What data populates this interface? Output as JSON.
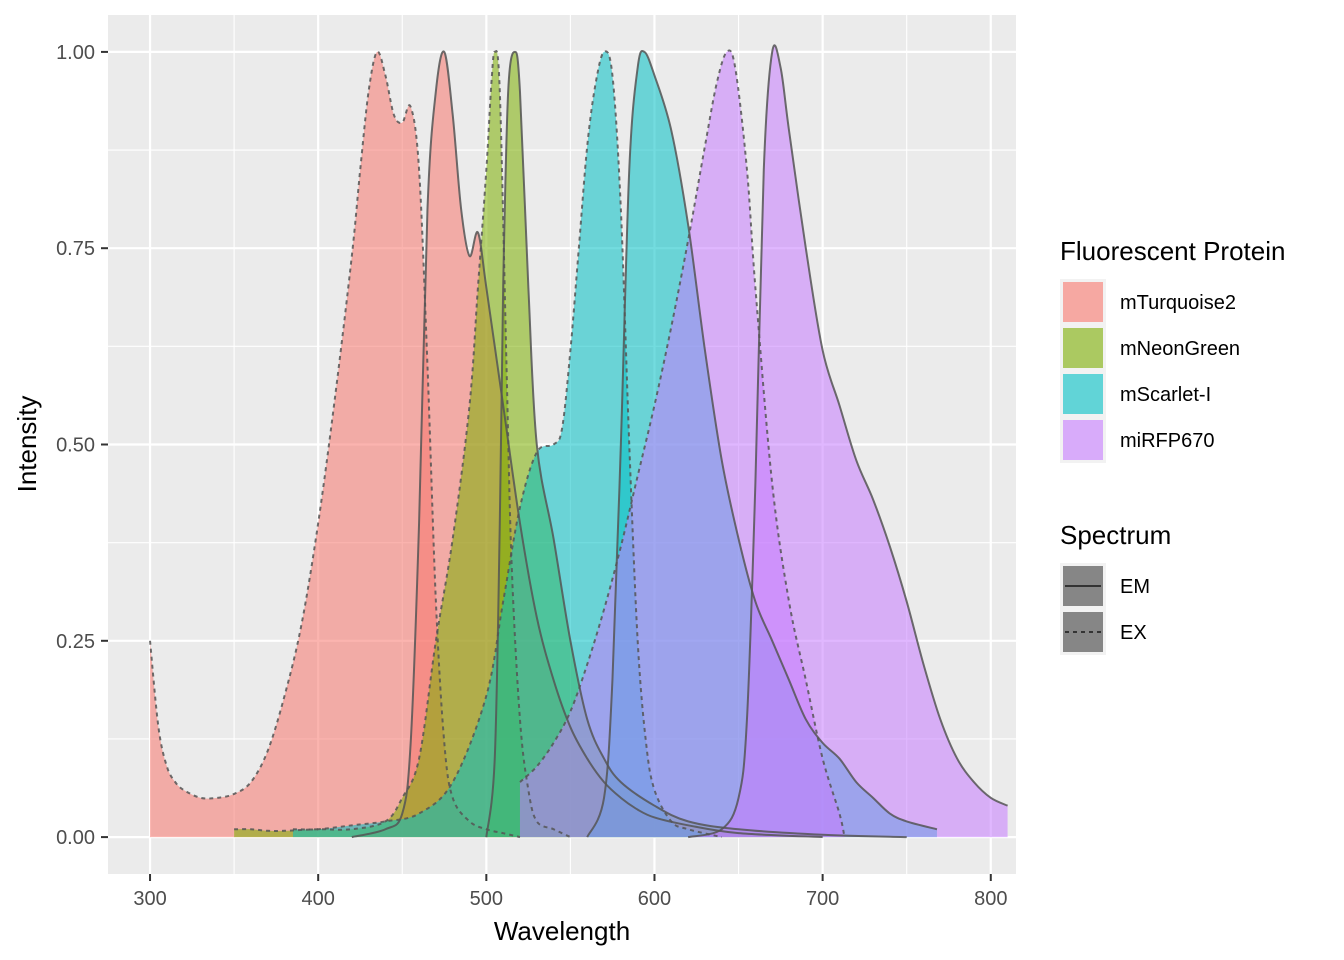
{
  "chart_data": {
    "type": "area",
    "xlabel": "Wavelength",
    "ylabel": "Intensity",
    "xlim": [
      275,
      815
    ],
    "ylim": [
      -0.047,
      1.047
    ],
    "x_ticks": [
      300,
      400,
      500,
      600,
      700,
      800
    ],
    "x_tick_labels": [
      "300",
      "400",
      "500",
      "600",
      "700",
      "800"
    ],
    "y_ticks": [
      0,
      0.25,
      0.5,
      0.75,
      1.0
    ],
    "y_tick_labels": [
      "0.00",
      "0.25",
      "0.50",
      "0.75",
      "1.00"
    ],
    "grid": true,
    "legend_position": "right",
    "legend": {
      "fill_title": "Fluorescent Protein",
      "fill_entries": [
        {
          "label": "mTurquoise2",
          "color": "#F8766D"
        },
        {
          "label": "mNeonGreen",
          "color": "#7CAE00"
        },
        {
          "label": "mScarlet-I",
          "color": "#00BFC4"
        },
        {
          "label": "miRFP670",
          "color": "#C77CFF"
        }
      ],
      "linetype_title": "Spectrum",
      "linetype_entries": [
        {
          "label": "EM",
          "style": "solid"
        },
        {
          "label": "EX",
          "style": "dashed"
        }
      ]
    },
    "series": [
      {
        "protein": "mTurquoise2",
        "spectrum": "EX",
        "color": "#F8766D",
        "points": [
          [
            300,
            0.25
          ],
          [
            305,
            0.14
          ],
          [
            310,
            0.09
          ],
          [
            315,
            0.07
          ],
          [
            320,
            0.06
          ],
          [
            330,
            0.05
          ],
          [
            340,
            0.05
          ],
          [
            350,
            0.055
          ],
          [
            360,
            0.07
          ],
          [
            370,
            0.11
          ],
          [
            380,
            0.18
          ],
          [
            390,
            0.27
          ],
          [
            400,
            0.4
          ],
          [
            410,
            0.56
          ],
          [
            420,
            0.74
          ],
          [
            425,
            0.85
          ],
          [
            430,
            0.95
          ],
          [
            435,
            1.0
          ],
          [
            440,
            0.97
          ],
          [
            445,
            0.92
          ],
          [
            450,
            0.91
          ],
          [
            455,
            0.93
          ],
          [
            460,
            0.85
          ],
          [
            465,
            0.6
          ],
          [
            470,
            0.3
          ],
          [
            475,
            0.12
          ],
          [
            480,
            0.05
          ],
          [
            490,
            0.02
          ],
          [
            500,
            0.01
          ],
          [
            510,
            0.005
          ],
          [
            520,
            0
          ]
        ]
      },
      {
        "protein": "mTurquoise2",
        "spectrum": "EM",
        "color": "#F8766D",
        "points": [
          [
            420,
            0
          ],
          [
            440,
            0.01
          ],
          [
            450,
            0.03
          ],
          [
            455,
            0.12
          ],
          [
            460,
            0.4
          ],
          [
            465,
            0.8
          ],
          [
            470,
            0.95
          ],
          [
            475,
            1.0
          ],
          [
            480,
            0.92
          ],
          [
            485,
            0.8
          ],
          [
            490,
            0.74
          ],
          [
            495,
            0.77
          ],
          [
            500,
            0.7
          ],
          [
            510,
            0.55
          ],
          [
            520,
            0.4
          ],
          [
            530,
            0.28
          ],
          [
            540,
            0.2
          ],
          [
            550,
            0.14
          ],
          [
            560,
            0.1
          ],
          [
            570,
            0.07
          ],
          [
            580,
            0.05
          ],
          [
            590,
            0.035
          ],
          [
            600,
            0.025
          ],
          [
            620,
            0.015
          ],
          [
            650,
            0.005
          ],
          [
            700,
            0
          ]
        ]
      },
      {
        "protein": "mNeonGreen",
        "spectrum": "EX",
        "color": "#7CAE00",
        "points": [
          [
            350,
            0.01
          ],
          [
            360,
            0.01
          ],
          [
            370,
            0.008
          ],
          [
            380,
            0.008
          ],
          [
            400,
            0.01
          ],
          [
            420,
            0.01
          ],
          [
            440,
            0.02
          ],
          [
            450,
            0.05
          ],
          [
            460,
            0.1
          ],
          [
            470,
            0.25
          ],
          [
            480,
            0.38
          ],
          [
            490,
            0.55
          ],
          [
            495,
            0.7
          ],
          [
            500,
            0.85
          ],
          [
            503,
            0.96
          ],
          [
            505,
            1.0
          ],
          [
            508,
            0.95
          ],
          [
            512,
            0.6
          ],
          [
            515,
            0.35
          ],
          [
            520,
            0.15
          ],
          [
            525,
            0.06
          ],
          [
            530,
            0.02
          ],
          [
            540,
            0.01
          ],
          [
            550,
            0
          ]
        ]
      },
      {
        "protein": "mNeonGreen",
        "spectrum": "EM",
        "color": "#7CAE00",
        "points": [
          [
            500,
            0
          ],
          [
            505,
            0.1
          ],
          [
            508,
            0.4
          ],
          [
            510,
            0.7
          ],
          [
            513,
            0.95
          ],
          [
            517,
            1.0
          ],
          [
            520,
            0.95
          ],
          [
            525,
            0.7
          ],
          [
            530,
            0.5
          ],
          [
            540,
            0.38
          ],
          [
            550,
            0.25
          ],
          [
            560,
            0.15
          ],
          [
            570,
            0.1
          ],
          [
            580,
            0.07
          ],
          [
            600,
            0.04
          ],
          [
            620,
            0.02
          ],
          [
            650,
            0.01
          ],
          [
            700,
            0.003
          ],
          [
            750,
            0
          ]
        ]
      },
      {
        "protein": "mScarlet-I",
        "spectrum": "EX",
        "color": "#00BFC4",
        "points": [
          [
            385,
            0.01
          ],
          [
            400,
            0.01
          ],
          [
            420,
            0.015
          ],
          [
            440,
            0.02
          ],
          [
            460,
            0.03
          ],
          [
            480,
            0.07
          ],
          [
            500,
            0.18
          ],
          [
            510,
            0.3
          ],
          [
            520,
            0.42
          ],
          [
            530,
            0.49
          ],
          [
            540,
            0.5
          ],
          [
            545,
            0.52
          ],
          [
            550,
            0.62
          ],
          [
            555,
            0.75
          ],
          [
            560,
            0.88
          ],
          [
            565,
            0.96
          ],
          [
            570,
            1.0
          ],
          [
            575,
            0.97
          ],
          [
            580,
            0.8
          ],
          [
            585,
            0.5
          ],
          [
            590,
            0.25
          ],
          [
            595,
            0.12
          ],
          [
            600,
            0.06
          ],
          [
            610,
            0.02
          ],
          [
            620,
            0.01
          ],
          [
            640,
            0
          ]
        ]
      },
      {
        "protein": "mScarlet-I",
        "spectrum": "EM",
        "color": "#00BFC4",
        "points": [
          [
            560,
            0
          ],
          [
            570,
            0.05
          ],
          [
            575,
            0.2
          ],
          [
            580,
            0.5
          ],
          [
            585,
            0.85
          ],
          [
            590,
            0.98
          ],
          [
            594,
            1.0
          ],
          [
            600,
            0.97
          ],
          [
            610,
            0.9
          ],
          [
            620,
            0.78
          ],
          [
            630,
            0.62
          ],
          [
            640,
            0.48
          ],
          [
            650,
            0.38
          ],
          [
            660,
            0.3
          ],
          [
            670,
            0.25
          ],
          [
            680,
            0.2
          ],
          [
            690,
            0.15
          ],
          [
            700,
            0.12
          ],
          [
            710,
            0.1
          ],
          [
            720,
            0.07
          ],
          [
            730,
            0.05
          ],
          [
            740,
            0.03
          ],
          [
            750,
            0.02
          ],
          [
            768,
            0.01
          ]
        ]
      },
      {
        "protein": "miRFP670",
        "spectrum": "EX",
        "color": "#C77CFF",
        "points": [
          [
            520,
            0.07
          ],
          [
            530,
            0.09
          ],
          [
            540,
            0.12
          ],
          [
            550,
            0.16
          ],
          [
            560,
            0.22
          ],
          [
            570,
            0.29
          ],
          [
            580,
            0.37
          ],
          [
            590,
            0.46
          ],
          [
            600,
            0.55
          ],
          [
            610,
            0.65
          ],
          [
            620,
            0.76
          ],
          [
            630,
            0.88
          ],
          [
            637,
            0.96
          ],
          [
            643,
            1.0
          ],
          [
            648,
            0.98
          ],
          [
            655,
            0.85
          ],
          [
            660,
            0.7
          ],
          [
            670,
            0.45
          ],
          [
            680,
            0.3
          ],
          [
            690,
            0.2
          ],
          [
            700,
            0.1
          ],
          [
            710,
            0.03
          ],
          [
            713,
            0
          ]
        ]
      },
      {
        "protein": "miRFP670",
        "spectrum": "EM",
        "color": "#C77CFF",
        "points": [
          [
            620,
            0
          ],
          [
            640,
            0.01
          ],
          [
            650,
            0.05
          ],
          [
            655,
            0.15
          ],
          [
            660,
            0.45
          ],
          [
            665,
            0.85
          ],
          [
            670,
            1.0
          ],
          [
            675,
            0.98
          ],
          [
            680,
            0.9
          ],
          [
            690,
            0.75
          ],
          [
            700,
            0.62
          ],
          [
            710,
            0.55
          ],
          [
            720,
            0.48
          ],
          [
            730,
            0.43
          ],
          [
            740,
            0.37
          ],
          [
            750,
            0.3
          ],
          [
            760,
            0.22
          ],
          [
            770,
            0.15
          ],
          [
            780,
            0.1
          ],
          [
            790,
            0.07
          ],
          [
            800,
            0.05
          ],
          [
            810,
            0.04
          ]
        ]
      }
    ]
  }
}
